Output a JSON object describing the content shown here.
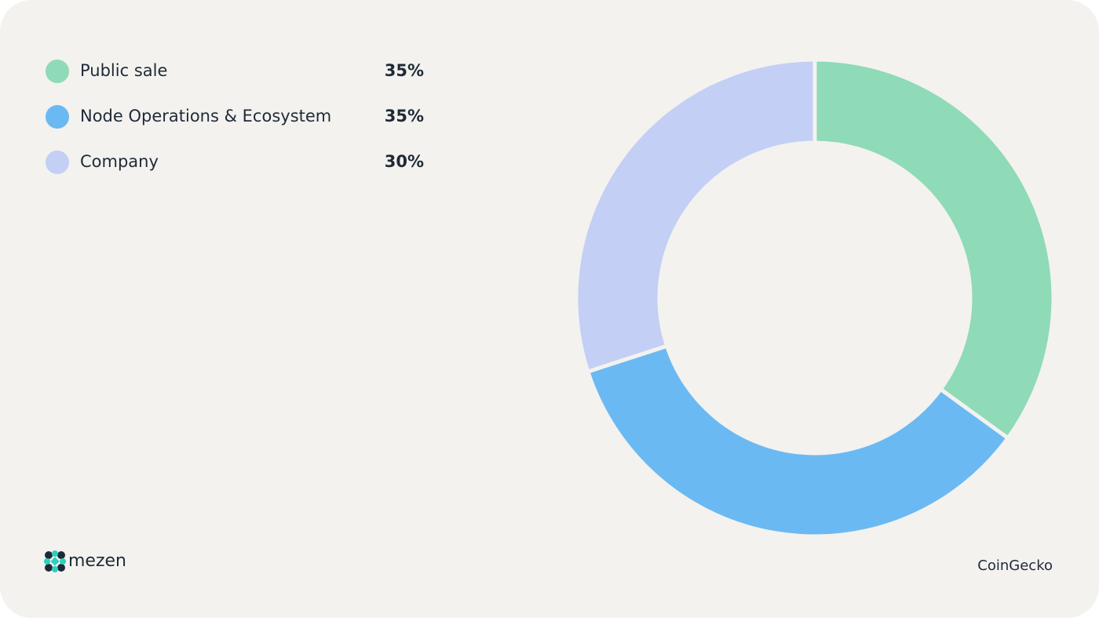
{
  "chart_data": {
    "type": "donut",
    "categories": [
      "Public sale",
      "Node Operations & Ecosystem",
      "Company"
    ],
    "values": [
      35,
      35,
      30
    ],
    "value_labels": [
      "35%",
      "35%",
      "30%"
    ],
    "colors": [
      "#8fdab7",
      "#6bb9f2",
      "#c3cff5"
    ],
    "brand": "mezen",
    "source": "CoinGecko"
  }
}
